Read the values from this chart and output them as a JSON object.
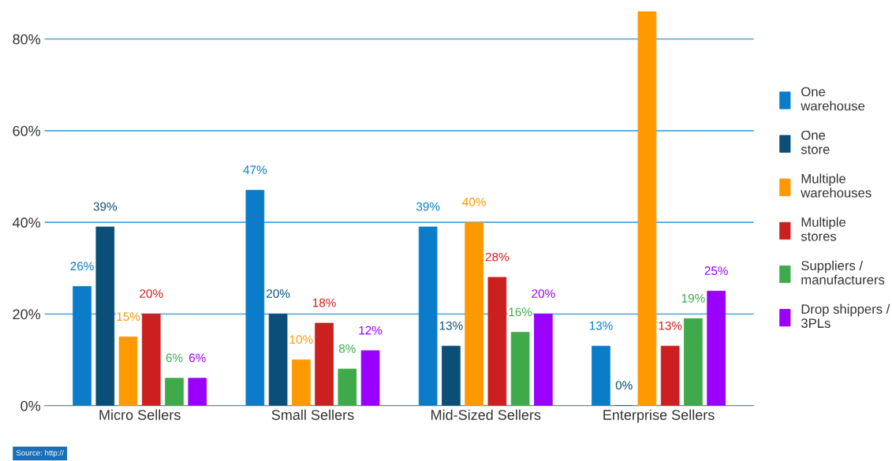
{
  "chart_data": {
    "type": "bar",
    "categories": [
      "Micro Sellers",
      "Small Sellers",
      "Mid-Sized Sellers",
      "Enterprise Sellers"
    ],
    "series": [
      {
        "name": "One\nwarehouse",
        "color": "#0a7cc9",
        "values": [
          26,
          47,
          39,
          13
        ],
        "value_labels": [
          "26%",
          "47%",
          "39%",
          "13%"
        ]
      },
      {
        "name": "One\nstore",
        "color": "#0b4f78",
        "values": [
          39,
          20,
          13,
          0
        ],
        "value_labels": [
          "39%",
          "20%",
          "13%",
          "0%"
        ]
      },
      {
        "name": "Multiple\nwarehouses",
        "color": "#ff9900",
        "values": [
          15,
          10,
          40,
          86
        ],
        "value_labels": [
          "15%",
          "10%",
          "40%",
          null
        ]
      },
      {
        "name": "Multiple\nstores",
        "color": "#cc1f1f",
        "values": [
          20,
          18,
          28,
          13
        ],
        "value_labels": [
          "20%",
          "18%",
          "28%",
          "13%"
        ]
      },
      {
        "name": "Suppliers /\nmanufacturers",
        "color": "#3eaa4a",
        "values": [
          6,
          8,
          16,
          19
        ],
        "value_labels": [
          "6%",
          "8%",
          "16%",
          "19%"
        ]
      },
      {
        "name": "Drop shippers /\n3PLs",
        "color": "#9900ff",
        "values": [
          6,
          12,
          20,
          25
        ],
        "value_labels": [
          "6%",
          "12%",
          "20%",
          "25%"
        ]
      }
    ],
    "ylim": [
      0,
      86
    ],
    "yticks": [
      {
        "value": 0,
        "label": "0%"
      },
      {
        "value": 20,
        "label": "20%"
      },
      {
        "value": 40,
        "label": "40%"
      },
      {
        "value": 60,
        "label": "60%"
      },
      {
        "value": 80,
        "label": "80%"
      }
    ],
    "grid": "y",
    "legend": "right",
    "annotations": [
      "Source: http://"
    ]
  }
}
